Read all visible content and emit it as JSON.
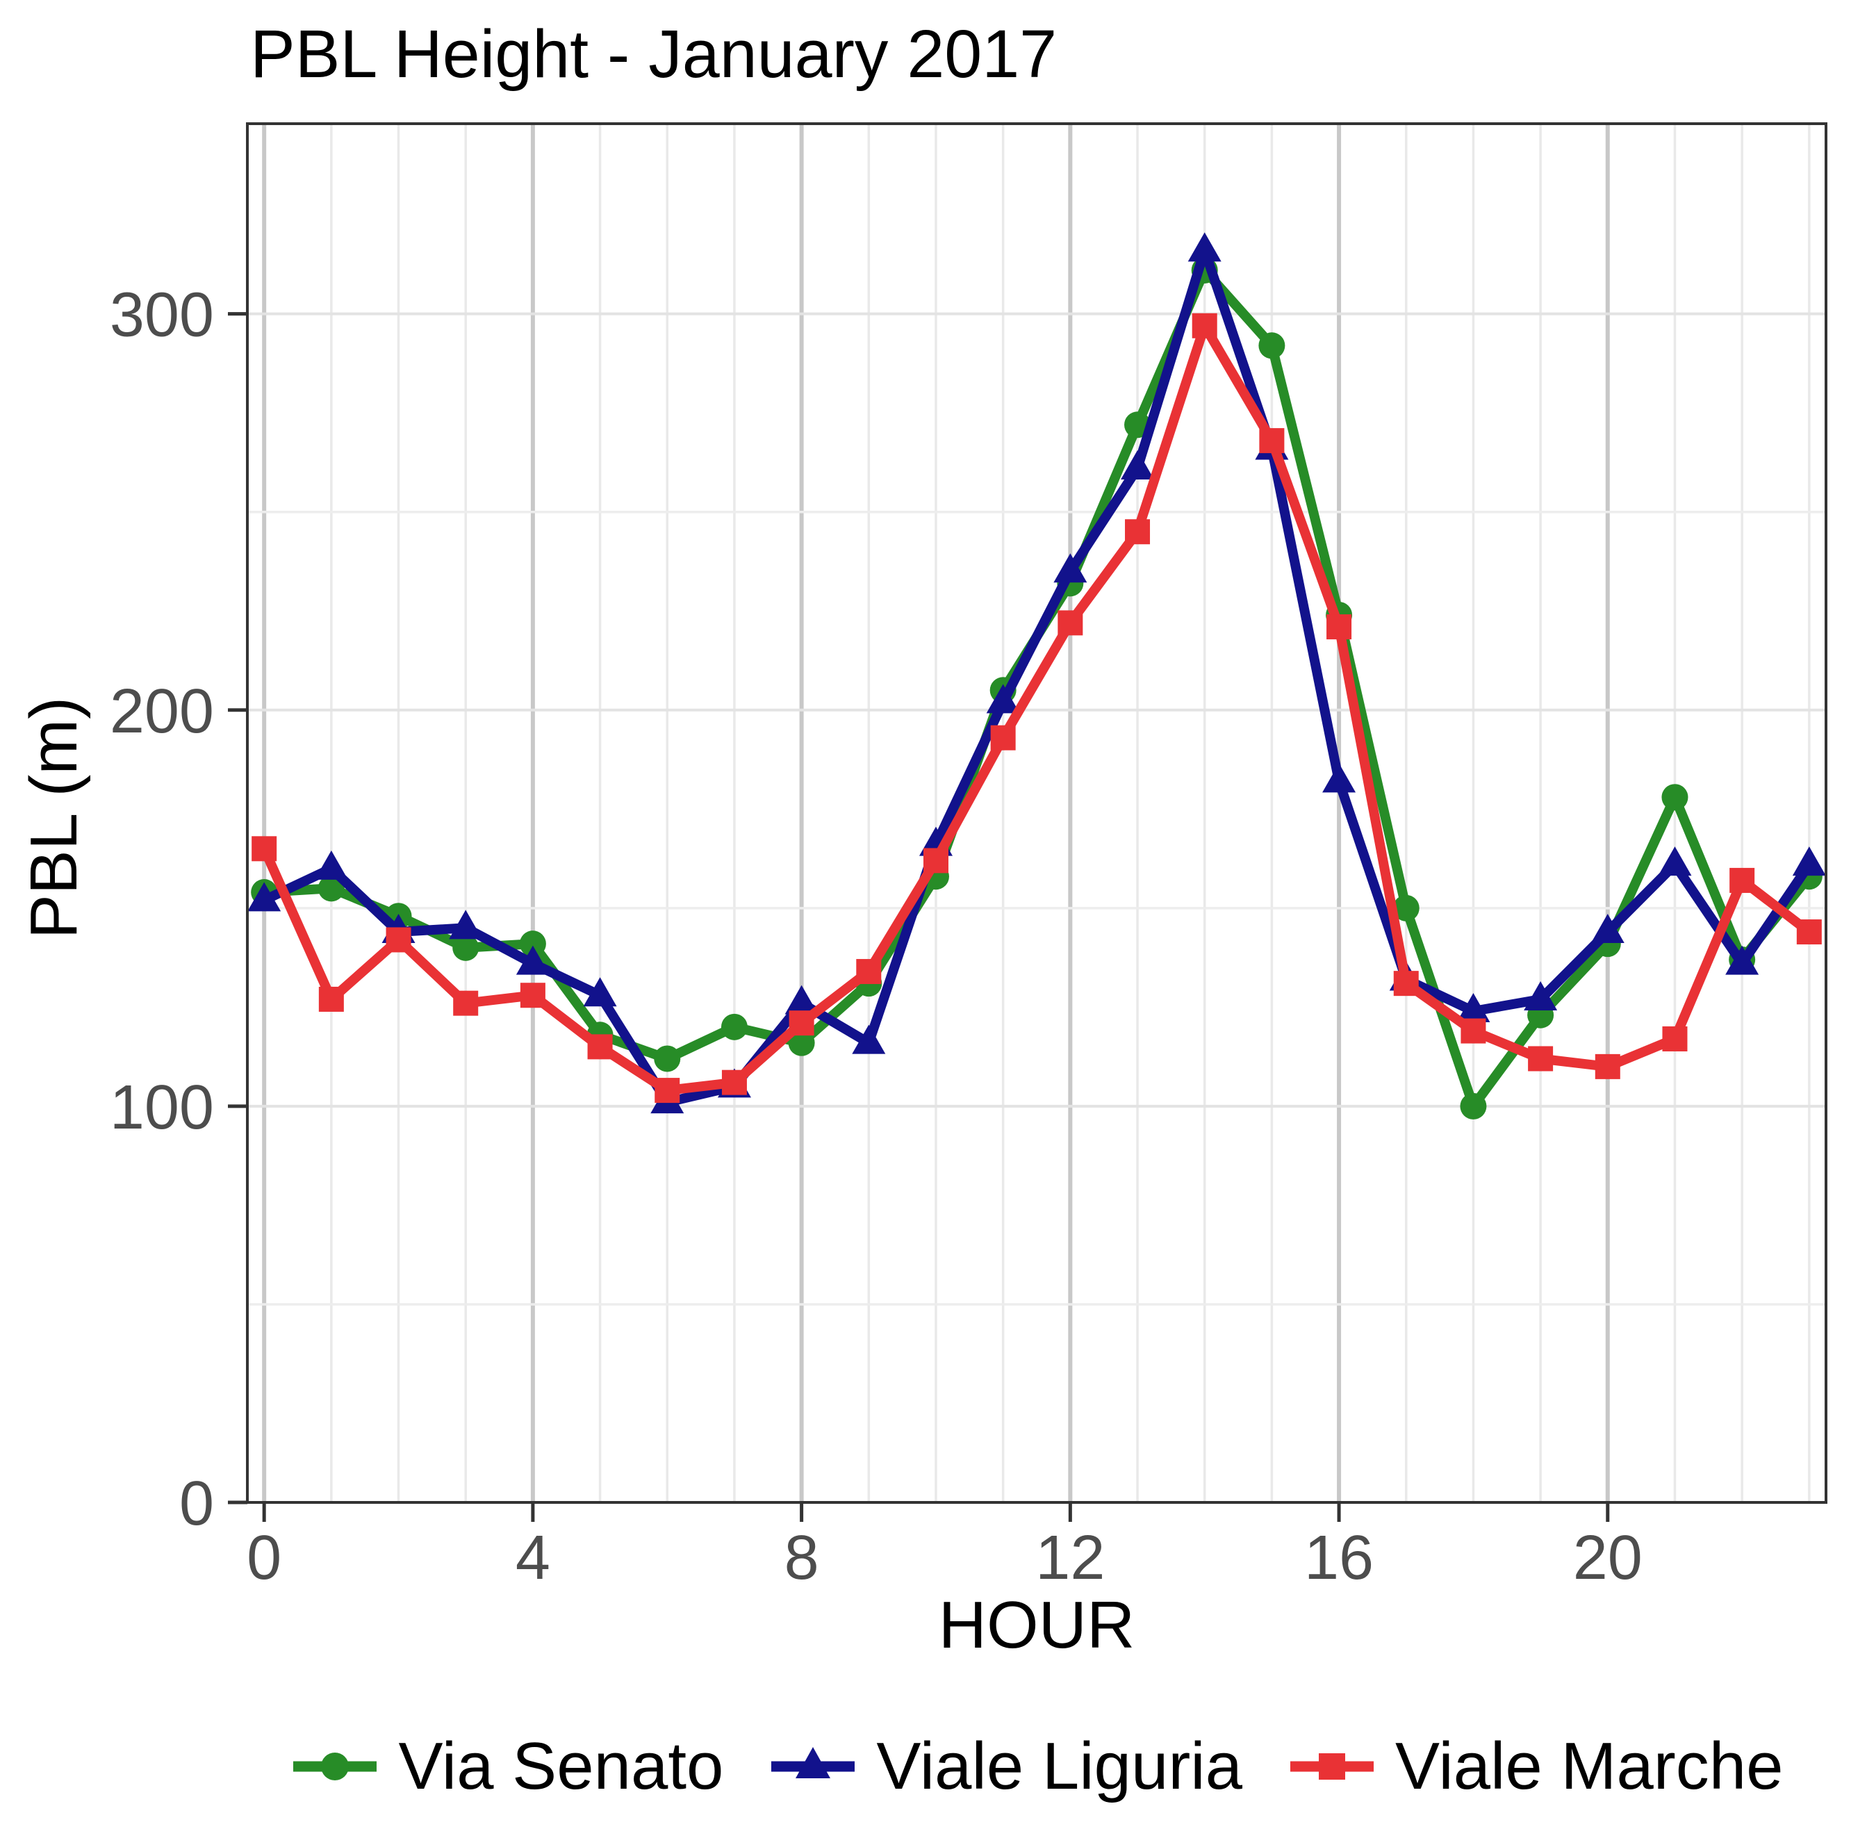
{
  "chart_data": {
    "type": "line",
    "title": "PBL Height - January 2017",
    "xlabel": "HOUR",
    "ylabel": "PBL (m)",
    "x": [
      0,
      1,
      2,
      3,
      4,
      5,
      6,
      7,
      8,
      9,
      10,
      11,
      12,
      13,
      14,
      15,
      16,
      17,
      18,
      19,
      20,
      21,
      22,
      23
    ],
    "x_ticks": [
      0,
      4,
      8,
      12,
      16,
      20
    ],
    "y_ticks": [
      0,
      100,
      200,
      300
    ],
    "y_minor_ticks": [
      50,
      150,
      250
    ],
    "xlim": [
      -0.25,
      23.25
    ],
    "ylim": [
      0,
      348
    ],
    "grid": "on",
    "legend_position": "bottom",
    "series": [
      {
        "name": "Via Senato",
        "color": "#278C27",
        "marker": "circle",
        "values": [
          154,
          155,
          148,
          140,
          141,
          118,
          112,
          120,
          116,
          131,
          158,
          205,
          232,
          272,
          311,
          292,
          224,
          150,
          100,
          123,
          141,
          178,
          137,
          158
        ]
      },
      {
        "name": "Viale Liguria",
        "color": "#12128C",
        "marker": "triangle",
        "values": [
          152,
          160,
          144,
          145,
          136,
          128,
          101,
          105,
          126,
          116,
          166,
          202,
          235,
          261,
          316,
          266,
          182,
          132,
          124,
          127,
          144,
          161,
          136,
          161
        ]
      },
      {
        "name": "Viale Marche",
        "color": "#E93235",
        "marker": "square",
        "values": [
          165,
          127,
          142,
          126,
          128,
          115,
          104,
          106,
          121,
          134,
          162,
          193,
          222,
          245,
          297,
          268,
          221,
          131,
          119,
          112,
          110,
          117,
          157,
          144
        ]
      }
    ],
    "style": {
      "axis_text_color": "#4D4D4D",
      "axis_line_color": "#333333",
      "grid_major_v_color": "#C8C8C8",
      "grid_minor_v_color": "#E9E9E9",
      "grid_major_h_color": "#E3E3E3",
      "grid_minor_h_color": "#EDEDED"
    }
  }
}
